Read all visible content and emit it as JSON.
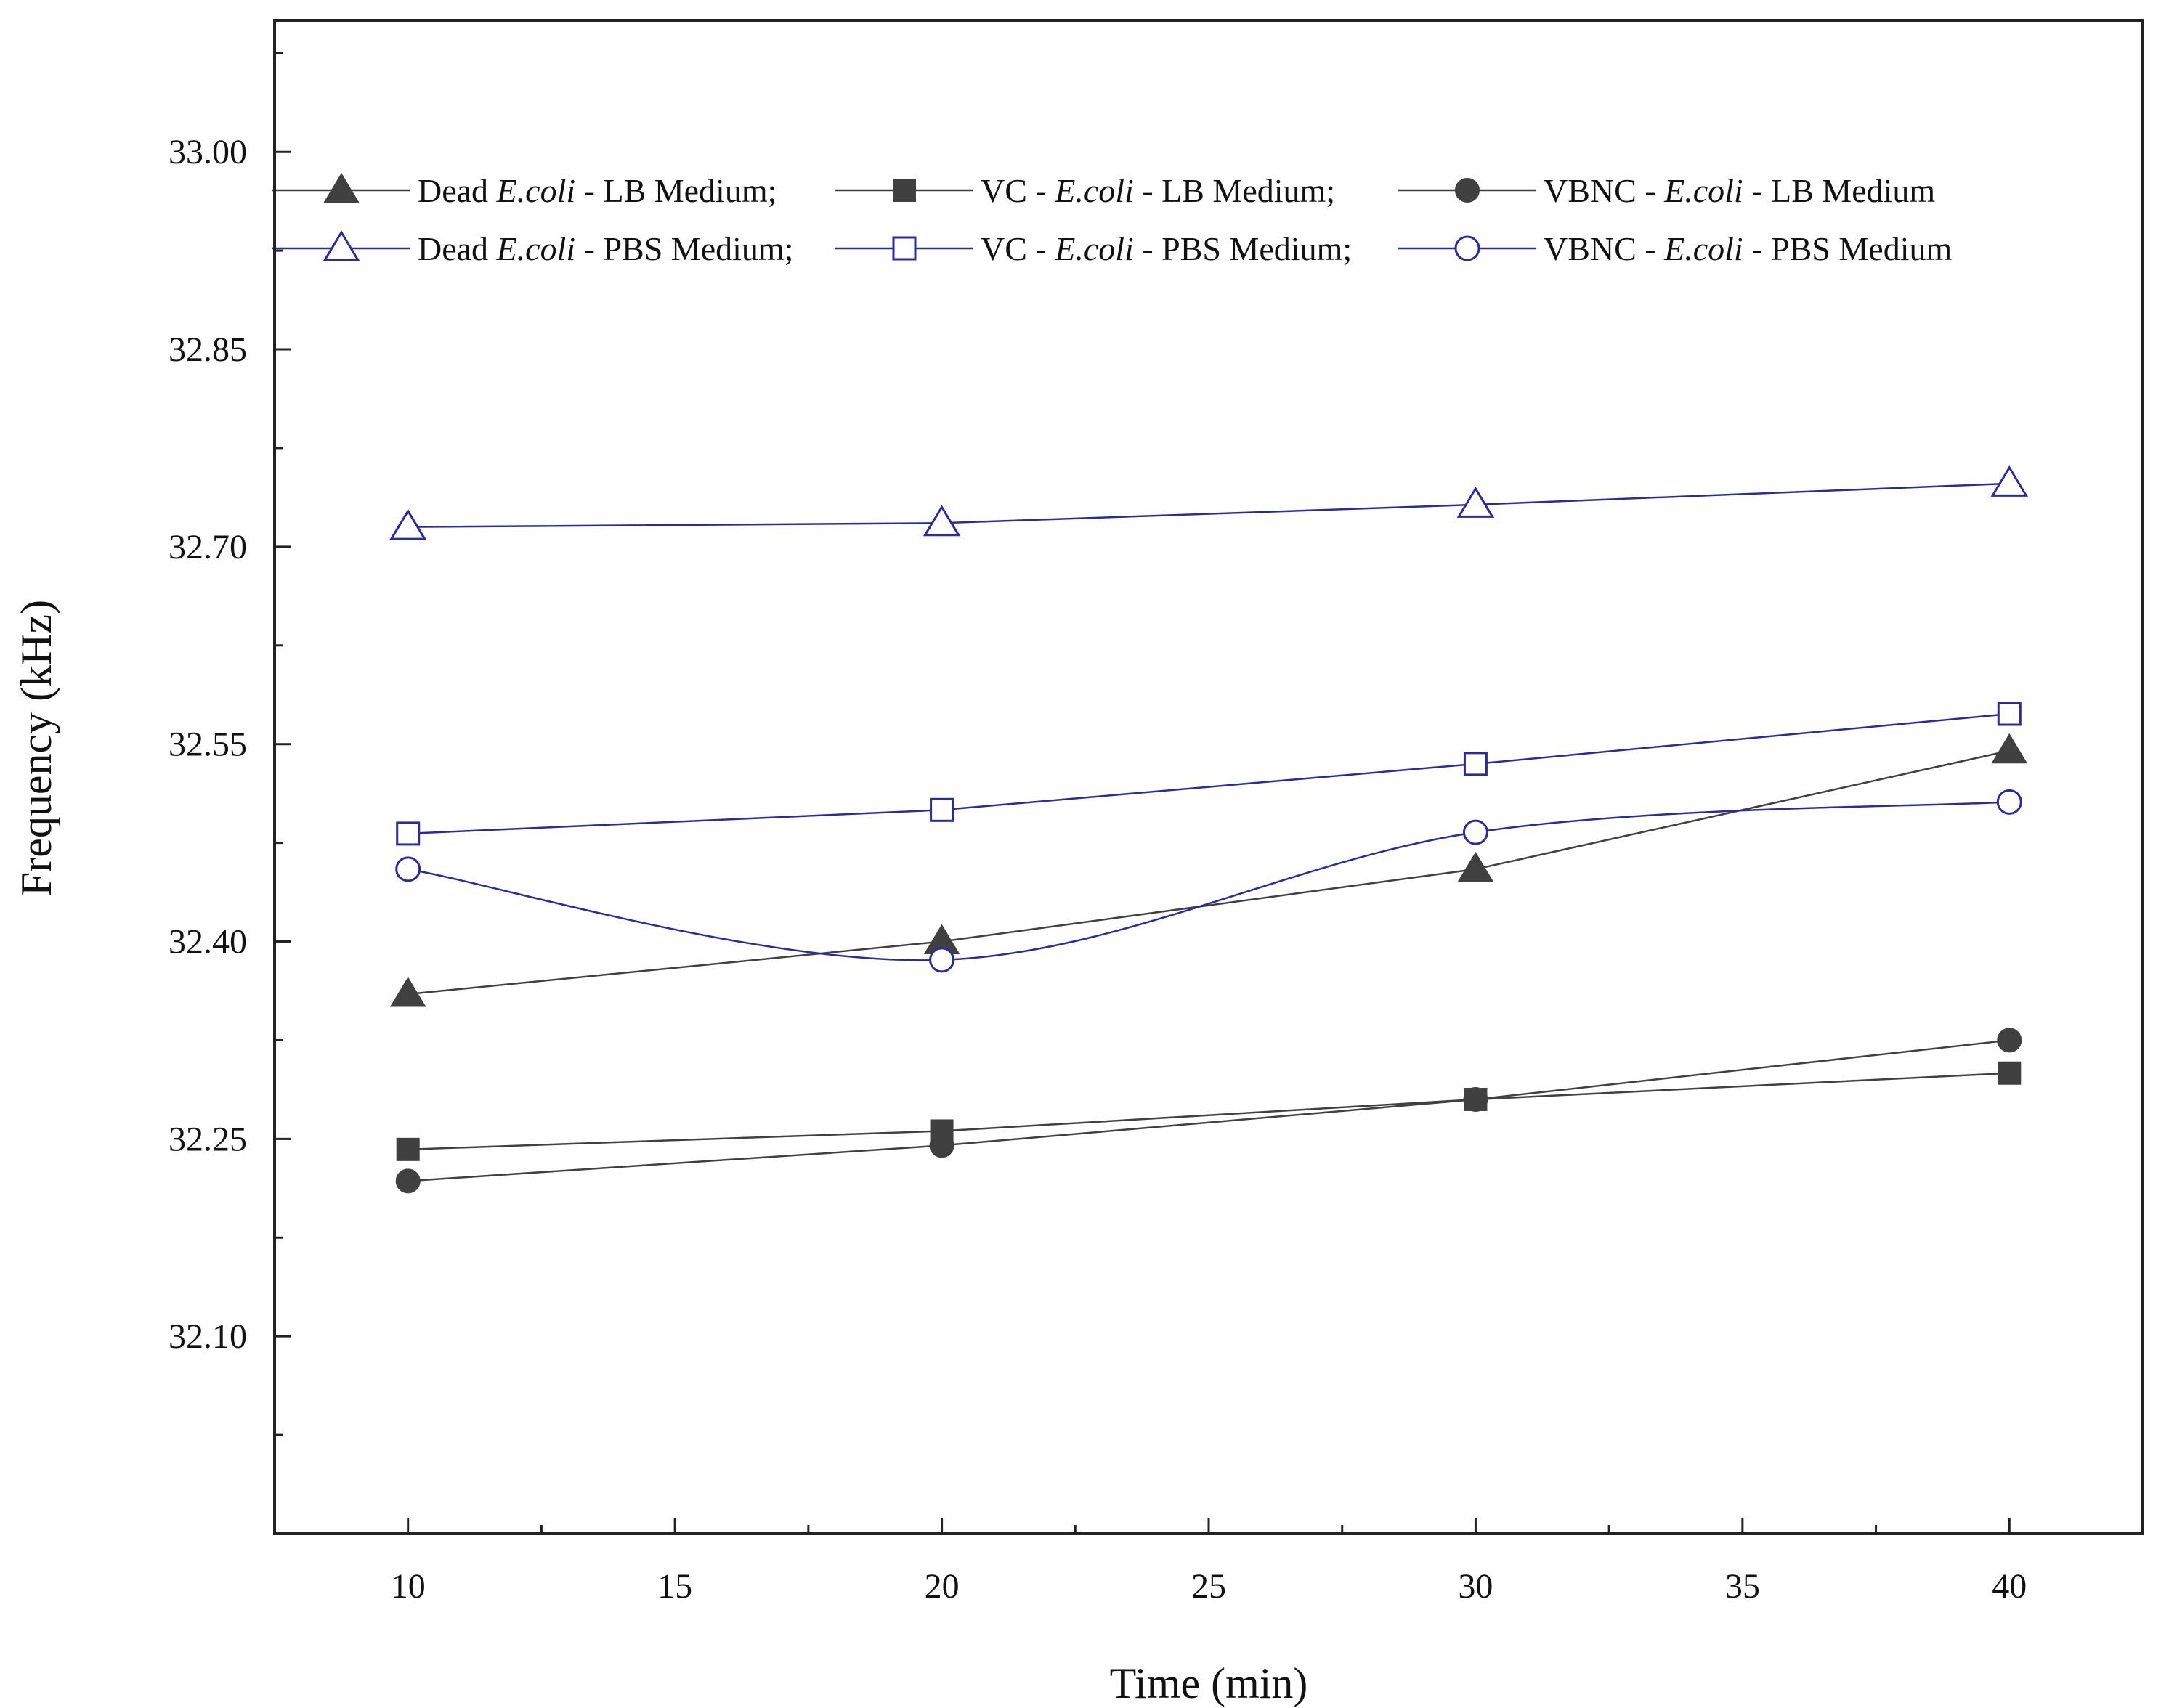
{
  "chart_data": {
    "type": "line",
    "title": "",
    "xlabel": "Time (min)",
    "ylabel": "Frequency (kHz)",
    "xlim": [
      7.5,
      42.5
    ],
    "ylim": [
      31.95,
      33.1
    ],
    "xticks": [
      10,
      15,
      20,
      25,
      30,
      35,
      40
    ],
    "xtick_labels": [
      "10",
      "15",
      "20",
      "25",
      "30",
      "35",
      "40"
    ],
    "yticks": [
      32.1,
      32.25,
      32.4,
      32.55,
      32.7,
      32.85,
      33.0
    ],
    "ytick_labels": [
      "32.10",
      "32.25",
      "32.40",
      "32.55",
      "32.70",
      "32.85",
      "33.00"
    ],
    "grid": false,
    "legend_position": "top",
    "x": [
      10,
      20,
      30,
      40
    ],
    "series": [
      {
        "id": "dead-lb",
        "marker": "triangle",
        "filled": true,
        "color": "#404040",
        "smooth": false,
        "values": [
          32.36,
          32.4,
          32.455,
          32.545
        ],
        "legend": {
          "prefix": "Dead ",
          "italic": "E.coli",
          "suffix": " - LB   Medium;"
        }
      },
      {
        "id": "vc-lb",
        "marker": "square",
        "filled": true,
        "color": "#404040",
        "smooth": false,
        "values": [
          32.242,
          32.256,
          32.28,
          32.3
        ],
        "legend": {
          "prefix": "VC - ",
          "italic": "E.coli",
          "suffix": " - LB   Medium;"
        }
      },
      {
        "id": "vbnc-lb",
        "marker": "circle",
        "filled": true,
        "color": "#404040",
        "smooth": false,
        "values": [
          32.218,
          32.245,
          32.28,
          32.325
        ],
        "legend": {
          "prefix": "VBNC - ",
          "italic": "E.coli",
          "suffix": " - LB  Medium"
        }
      },
      {
        "id": "dead-pbs",
        "marker": "triangle",
        "filled": false,
        "color": "#2b2b9a",
        "smooth": false,
        "values": [
          32.715,
          32.718,
          32.732,
          32.748
        ],
        "legend": {
          "prefix": "Dead ",
          "italic": "E.coli",
          "suffix": " - PBS Medium;"
        }
      },
      {
        "id": "vc-pbs",
        "marker": "square",
        "filled": false,
        "color": "#2b2b9a",
        "smooth": false,
        "values": [
          32.482,
          32.5,
          32.535,
          32.573
        ],
        "legend": {
          "prefix": "VC - ",
          "italic": "E.coli",
          "suffix": " - PBS Medium;"
        }
      },
      {
        "id": "vbnc-pbs",
        "marker": "circle",
        "filled": false,
        "color": "#2b2b9a",
        "smooth": true,
        "values": [
          32.455,
          32.386,
          32.483,
          32.506
        ],
        "legend": {
          "prefix": "VBNC - ",
          "italic": "E.coli",
          "suffix": " - PBS Medium"
        }
      }
    ]
  }
}
